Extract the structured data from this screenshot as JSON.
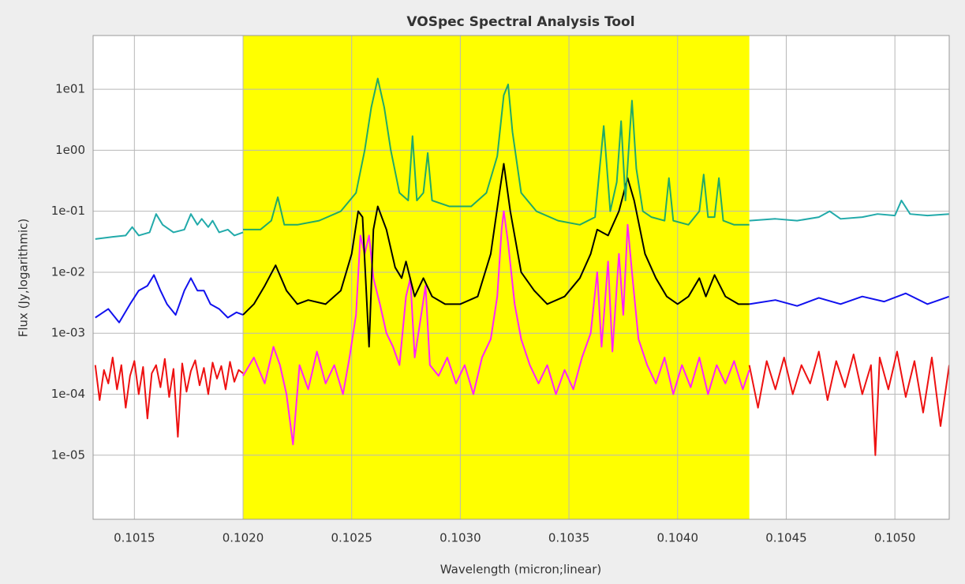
{
  "chart_data": {
    "type": "line",
    "title": "VOSpec Spectral Analysis Tool",
    "xlabel": "Wavelength (micron;linear)",
    "ylabel": "Flux (Jy,logarithmic)",
    "xlim": [
      0.10131,
      0.10525
    ],
    "ylim": [
      8.9e-07,
      76
    ],
    "ylog": true,
    "grid": true,
    "xticks": [
      0.1015,
      {
        "value": 0.102,
        "label": "0.1020"
      },
      0.1025,
      {
        "value": 0.103,
        "label": "0.1030"
      },
      0.1035,
      {
        "value": 0.104,
        "label": "0.1040"
      },
      0.1045,
      {
        "value": 0.105,
        "label": "0.1050"
      }
    ],
    "yticks": [
      {
        "value": 10,
        "label": "1e01"
      },
      {
        "value": 1,
        "label": "1e00"
      },
      {
        "value": 0.1,
        "label": "1e-01"
      },
      {
        "value": 0.01,
        "label": "1e-02"
      },
      {
        "value": 0.001,
        "label": "1e-03"
      },
      {
        "value": 0.0001,
        "label": "1e-04"
      },
      {
        "value": 1e-05,
        "label": "1e-05"
      }
    ],
    "highlight": {
      "x": [
        0.102,
        0.10433
      ],
      "color": "#ffff00"
    },
    "series": [
      {
        "color": "#ee1111",
        "x": [
          0.10132,
          0.10134,
          0.10136,
          0.10138,
          0.1014,
          0.10142,
          0.10144,
          0.10146,
          0.10148,
          0.1015,
          0.10152,
          0.10154,
          0.10156,
          0.10158,
          0.1016,
          0.10162,
          0.10164,
          0.10166,
          0.10168,
          0.1017,
          0.10172,
          0.10174,
          0.10176,
          0.10178,
          0.1018,
          0.10182,
          0.10184,
          0.10186,
          0.10188,
          0.1019,
          0.10192,
          0.10194,
          0.10196,
          0.10198,
          0.102
        ],
        "values": [
          0.0003,
          8e-05,
          0.00025,
          0.00015,
          0.0004,
          0.00012,
          0.0003,
          6e-05,
          0.0002,
          0.00035,
          0.0001,
          0.00028,
          4e-05,
          0.00022,
          0.0003,
          0.00013,
          0.00038,
          9e-05,
          0.00026,
          2e-05,
          0.00032,
          0.00011,
          0.00024,
          0.00036,
          0.00014,
          0.00027,
          0.0001,
          0.00033,
          0.00018,
          0.00029,
          0.00012,
          0.00034,
          0.00016,
          0.00025,
          0.00022
        ]
      },
      {
        "color": "#ee1111",
        "x": [
          0.10433,
          0.10437,
          0.10441,
          0.10445,
          0.10449,
          0.10453,
          0.10457,
          0.10461,
          0.10465,
          0.10469,
          0.10473,
          0.10477,
          0.10481,
          0.10485,
          0.10489,
          0.10491,
          0.10493,
          0.10497,
          0.10501,
          0.10505,
          0.10509,
          0.10513,
          0.10517,
          0.10521,
          0.10525
        ],
        "values": [
          0.0003,
          6e-05,
          0.00035,
          0.00012,
          0.0004,
          0.0001,
          0.0003,
          0.00015,
          0.0005,
          8e-05,
          0.00035,
          0.00013,
          0.00045,
          0.0001,
          0.0003,
          1e-05,
          0.0004,
          0.00012,
          0.0005,
          9e-05,
          0.00035,
          5e-05,
          0.0004,
          3e-05,
          0.0003
        ]
      },
      {
        "color": "#ff22ff",
        "x": [
          0.102,
          0.10205,
          0.1021,
          0.10214,
          0.10217,
          0.1022,
          0.10223,
          0.10226,
          0.1023,
          0.10234,
          0.10238,
          0.10242,
          0.10246,
          0.10249,
          0.10252,
          0.10254,
          0.10256,
          0.10258,
          0.1026,
          0.10263,
          0.10266,
          0.10269,
          0.10272,
          0.10275,
          0.10277,
          0.10279,
          0.10282,
          0.10284,
          0.10286,
          0.1029,
          0.10294,
          0.10298,
          0.10302,
          0.10306,
          0.1031,
          0.10314,
          0.10317,
          0.10319,
          0.1032,
          0.10322,
          0.10325,
          0.10328,
          0.10332,
          0.10336,
          0.1034,
          0.10344,
          0.10348,
          0.10352,
          0.10356,
          0.1036,
          0.10363,
          0.10365,
          0.10368,
          0.1037,
          0.10373,
          0.10375,
          0.10377,
          0.10379,
          0.10382,
          0.10386,
          0.1039,
          0.10394,
          0.10398,
          0.10402,
          0.10406,
          0.1041,
          0.10414,
          0.10418,
          0.10422,
          0.10426,
          0.1043,
          0.10433
        ],
        "values": [
          0.0002,
          0.0004,
          0.00015,
          0.0006,
          0.0003,
          0.0001,
          1.5e-05,
          0.0003,
          0.00012,
          0.0005,
          0.00015,
          0.0003,
          0.0001,
          0.0004,
          0.002,
          0.04,
          0.02,
          0.04,
          0.008,
          0.003,
          0.001,
          0.0006,
          0.0003,
          0.004,
          0.008,
          0.0004,
          0.002,
          0.006,
          0.0003,
          0.0002,
          0.0004,
          0.00015,
          0.0003,
          0.0001,
          0.0004,
          0.0008,
          0.004,
          0.05,
          0.1,
          0.03,
          0.003,
          0.0008,
          0.0003,
          0.00015,
          0.0003,
          0.0001,
          0.00025,
          0.00012,
          0.0004,
          0.001,
          0.01,
          0.0006,
          0.015,
          0.0005,
          0.02,
          0.002,
          0.06,
          0.01,
          0.0008,
          0.0003,
          0.00015,
          0.0004,
          0.0001,
          0.0003,
          0.00013,
          0.0004,
          0.0001,
          0.0003,
          0.00015,
          0.00035,
          0.00012,
          0.00025
        ]
      },
      {
        "color": "#1111ee",
        "x": [
          0.10132,
          0.10138,
          0.10143,
          0.10148,
          0.10152,
          0.10156,
          0.10159,
          0.10162,
          0.10165,
          0.10169,
          0.10173,
          0.10176,
          0.10179,
          0.10182,
          0.10185,
          0.10189,
          0.10193,
          0.10197,
          0.102
        ],
        "values": [
          0.0018,
          0.0025,
          0.0015,
          0.003,
          0.005,
          0.006,
          0.009,
          0.005,
          0.003,
          0.002,
          0.005,
          0.008,
          0.005,
          0.005,
          0.003,
          0.0025,
          0.0018,
          0.0022,
          0.002
        ]
      },
      {
        "color": "#1111ee",
        "x": [
          0.10433,
          0.10445,
          0.10455,
          0.10465,
          0.10475,
          0.10485,
          0.10495,
          0.10505,
          0.10515,
          0.10525
        ],
        "values": [
          0.003,
          0.0035,
          0.0028,
          0.0038,
          0.003,
          0.004,
          0.0033,
          0.0045,
          0.003,
          0.004
        ]
      },
      {
        "color": "#000000",
        "x": [
          0.102,
          0.10205,
          0.1021,
          0.10215,
          0.1022,
          0.10225,
          0.1023,
          0.10238,
          0.10245,
          0.1025,
          0.10253,
          0.10255,
          0.10258,
          0.1026,
          0.10262,
          0.10266,
          0.1027,
          0.10273,
          0.10275,
          0.10279,
          0.10283,
          0.10287,
          0.10293,
          0.103,
          0.10308,
          0.10314,
          0.10318,
          0.1032,
          0.10323,
          0.10328,
          0.10334,
          0.1034,
          0.10348,
          0.10355,
          0.1036,
          0.10363,
          0.10368,
          0.10373,
          0.10377,
          0.1038,
          0.10385,
          0.1039,
          0.10395,
          0.104,
          0.10405,
          0.1041,
          0.10413,
          0.10417,
          0.10422,
          0.10428,
          0.10433
        ],
        "values": [
          0.002,
          0.003,
          0.006,
          0.013,
          0.005,
          0.003,
          0.0035,
          0.003,
          0.005,
          0.02,
          0.1,
          0.08,
          0.0006,
          0.05,
          0.12,
          0.05,
          0.012,
          0.008,
          0.015,
          0.004,
          0.008,
          0.004,
          0.003,
          0.003,
          0.004,
          0.02,
          0.2,
          0.6,
          0.1,
          0.01,
          0.005,
          0.003,
          0.004,
          0.008,
          0.02,
          0.05,
          0.04,
          0.1,
          0.35,
          0.15,
          0.02,
          0.008,
          0.004,
          0.003,
          0.004,
          0.008,
          0.004,
          0.009,
          0.004,
          0.003,
          0.003
        ]
      },
      {
        "color": "#22aaaa",
        "x": [
          0.10132,
          0.1014,
          0.10146,
          0.10149,
          0.10152,
          0.10157,
          0.1016,
          0.10163,
          0.10168,
          0.10173,
          0.10176,
          0.10179,
          0.10181,
          0.10184,
          0.10186,
          0.10189,
          0.10193,
          0.10196,
          0.102
        ],
        "values": [
          0.035,
          0.038,
          0.04,
          0.055,
          0.04,
          0.045,
          0.09,
          0.06,
          0.045,
          0.05,
          0.09,
          0.06,
          0.075,
          0.055,
          0.07,
          0.045,
          0.05,
          0.04,
          0.045
        ]
      },
      {
        "color": "#22aaaa",
        "x": [
          0.10433,
          0.10445,
          0.10455,
          0.10465,
          0.1047,
          0.10475,
          0.10485,
          0.10492,
          0.105,
          0.10503,
          0.10507,
          0.10515,
          0.10525
        ],
        "values": [
          0.07,
          0.075,
          0.07,
          0.08,
          0.1,
          0.075,
          0.08,
          0.09,
          0.085,
          0.15,
          0.09,
          0.085,
          0.09
        ]
      },
      {
        "color": "#22aa66",
        "x": [
          0.102,
          0.10208,
          0.10213,
          0.10216,
          0.10219,
          0.10225,
          0.10235,
          0.10245,
          0.10252,
          0.10256,
          0.10259,
          0.10262,
          0.10265,
          0.10268,
          0.10272,
          0.10276,
          0.10278,
          0.1028,
          0.10283,
          0.10285,
          0.10287,
          0.10295,
          0.10305,
          0.10312,
          0.10317,
          0.1032,
          0.10322,
          0.10324,
          0.10328,
          0.10335,
          0.10345,
          0.10355,
          0.10362,
          0.10366,
          0.10369,
          0.10372,
          0.10374,
          0.10376,
          0.10378,
          0.10379,
          0.10381,
          0.10384,
          0.10388,
          0.10394,
          0.10396,
          0.10398,
          0.10405,
          0.1041,
          0.10412,
          0.10414,
          0.10417,
          0.10419,
          0.10421,
          0.10426,
          0.10433
        ],
        "values": [
          0.05,
          0.05,
          0.07,
          0.17,
          0.06,
          0.06,
          0.07,
          0.1,
          0.2,
          1,
          5,
          15,
          5,
          1,
          0.2,
          0.15,
          1.7,
          0.15,
          0.2,
          0.9,
          0.15,
          0.12,
          0.12,
          0.2,
          0.8,
          8,
          12,
          2,
          0.2,
          0.1,
          0.07,
          0.06,
          0.08,
          2.5,
          0.1,
          0.3,
          3,
          0.15,
          2,
          6.5,
          0.5,
          0.1,
          0.08,
          0.07,
          0.35,
          0.07,
          0.06,
          0.1,
          0.4,
          0.08,
          0.08,
          0.35,
          0.07,
          0.06,
          0.06
        ]
      }
    ]
  }
}
